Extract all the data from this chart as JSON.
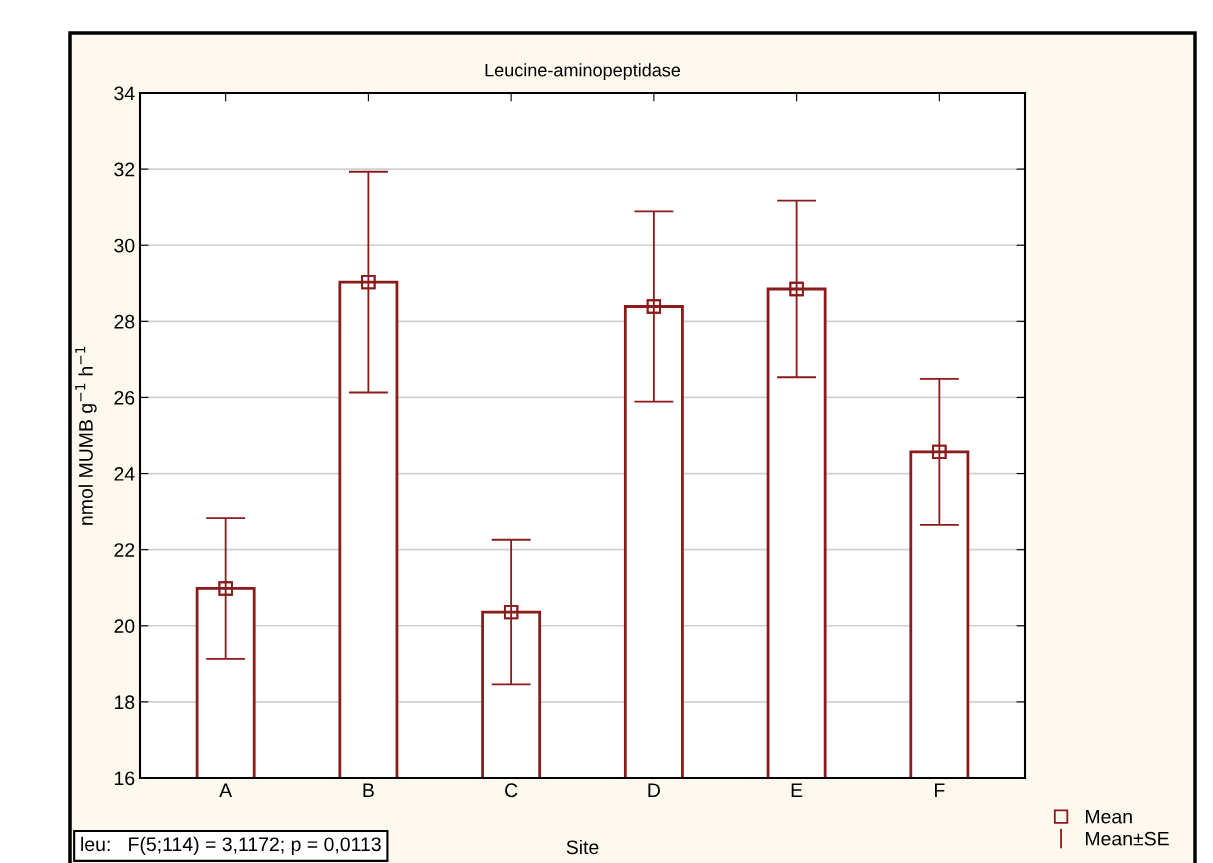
{
  "chart_data": {
    "type": "bar",
    "title": "Leucine-aminopeptidase",
    "xlabel": "Site",
    "ylabel": "nmol MUMB g$^{−1}$ h$^{−1}$",
    "categories": [
      "A",
      "B",
      "C",
      "D",
      "E",
      "F"
    ],
    "series": [
      {
        "type": "bar",
        "color": "#8b1a1a",
        "values": [
          20.98,
          29.03,
          20.36,
          28.39,
          28.85,
          24.57
        ]
      },
      {
        "type": "scatter",
        "name": "Mean",
        "color": "#8b1a1a",
        "marker": "square",
        "x": [
          "A",
          "B",
          "C",
          "D",
          "E",
          "F"
        ],
        "values": [
          20.98,
          29.03,
          20.36,
          28.39,
          28.85,
          24.57
        ]
      },
      {
        "type": "scatter",
        "name": "Mean±SE",
        "color": "#8b1a1a",
        "marker": "square",
        "x": [
          "A",
          "B",
          "C",
          "D",
          "E",
          "F"
        ],
        "values": [
          20.98,
          29.03,
          20.36,
          28.39,
          28.85,
          24.57
        ],
        "errors": [
          1.85,
          2.9,
          1.9,
          2.5,
          2.32,
          1.92
        ]
      }
    ],
    "ylim": [
      16,
      34
    ],
    "yticks": [
      16,
      18,
      20,
      22,
      24,
      26,
      28,
      30,
      32,
      34
    ],
    "grid": "y",
    "legend": "bottom right",
    "annotations": [
      "leu:   F(5;114) = 3,1172; p = 0,0113"
    ]
  }
}
